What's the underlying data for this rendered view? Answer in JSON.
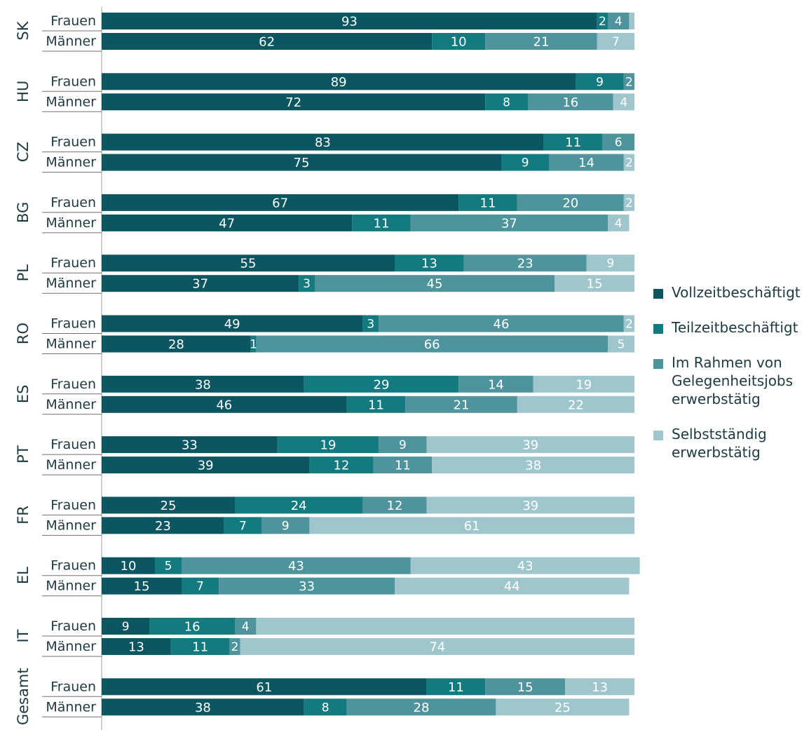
{
  "chart_data": {
    "type": "bar",
    "orientation": "horizontal",
    "stacked": true,
    "unit": "percent",
    "xlim": [
      0,
      100
    ],
    "grid": false,
    "legend_position": "right",
    "series": [
      {
        "name": "Vollzeitbeschäftigt",
        "color": "#0b5660"
      },
      {
        "name": "Teilzeitbeschäftigt",
        "color": "#137a80"
      },
      {
        "name": "Im Rahmen von Gelegenheitsjobs erwerbstätig",
        "color": "#4f949c"
      },
      {
        "name": "Selbstständig erwerbstätig",
        "color": "#9fc6cd"
      }
    ],
    "groups": [
      {
        "label": "SK",
        "rows": [
          {
            "label": "Frauen",
            "values": [
              93,
              2,
              4,
              1
            ]
          },
          {
            "label": "Männer",
            "values": [
              62,
              10,
              21,
              7
            ]
          }
        ]
      },
      {
        "label": "HU",
        "rows": [
          {
            "label": "Frauen",
            "values": [
              89,
              9,
              2,
              0
            ]
          },
          {
            "label": "Männer",
            "values": [
              72,
              8,
              16,
              4
            ]
          }
        ]
      },
      {
        "label": "CZ",
        "rows": [
          {
            "label": "Frauen",
            "values": [
              83,
              11,
              6,
              0
            ]
          },
          {
            "label": "Männer",
            "values": [
              75,
              9,
              14,
              2
            ]
          }
        ]
      },
      {
        "label": "BG",
        "rows": [
          {
            "label": "Frauen",
            "values": [
              67,
              11,
              20,
              2
            ]
          },
          {
            "label": "Männer",
            "values": [
              47,
              11,
              37,
              4
            ]
          }
        ]
      },
      {
        "label": "PL",
        "rows": [
          {
            "label": "Frauen",
            "values": [
              55,
              13,
              23,
              9
            ]
          },
          {
            "label": "Männer",
            "values": [
              37,
              3,
              45,
              15
            ]
          }
        ]
      },
      {
        "label": "RO",
        "rows": [
          {
            "label": "Frauen",
            "values": [
              49,
              3,
              46,
              2
            ]
          },
          {
            "label": "Männer",
            "values": [
              28,
              1,
              66,
              5
            ]
          }
        ]
      },
      {
        "label": "ES",
        "rows": [
          {
            "label": "Frauen",
            "values": [
              38,
              29,
              14,
              19
            ]
          },
          {
            "label": "Männer",
            "values": [
              46,
              11,
              21,
              22
            ]
          }
        ]
      },
      {
        "label": "PT",
        "rows": [
          {
            "label": "Frauen",
            "values": [
              33,
              19,
              9,
              39
            ]
          },
          {
            "label": "Männer",
            "values": [
              39,
              12,
              11,
              38
            ]
          }
        ]
      },
      {
        "label": "FR",
        "rows": [
          {
            "label": "Frauen",
            "values": [
              25,
              24,
              12,
              39
            ]
          },
          {
            "label": "Männer",
            "values": [
              23,
              7,
              9,
              61
            ]
          }
        ]
      },
      {
        "label": "EL",
        "rows": [
          {
            "label": "Frauen",
            "values": [
              10,
              5,
              43,
              43
            ]
          },
          {
            "label": "Männer",
            "values": [
              15,
              7,
              33,
              44
            ]
          }
        ]
      },
      {
        "label": "IT",
        "rows": [
          {
            "label": "Frauen",
            "values": [
              9,
              16,
              4,
              71
            ]
          },
          {
            "label": "Männer",
            "values": [
              13,
              11,
              2,
              74
            ]
          }
        ]
      },
      {
        "label": "Gesamt",
        "rows": [
          {
            "label": "Frauen",
            "values": [
              61,
              11,
              15,
              13
            ]
          },
          {
            "label": "Männer",
            "values": [
              38,
              8,
              28,
              25
            ]
          }
        ]
      }
    ],
    "hidden_data_labels": [
      [
        0,
        0,
        3
      ],
      [
        2,
        0,
        3
      ],
      [
        10,
        0,
        3
      ]
    ]
  }
}
